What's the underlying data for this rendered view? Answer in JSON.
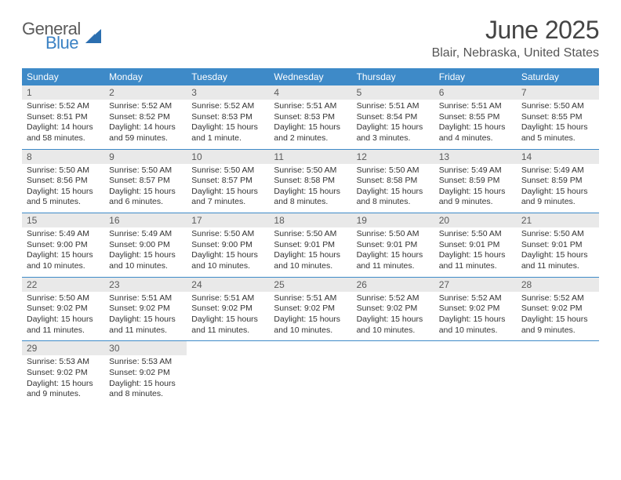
{
  "logo": {
    "text1": "General",
    "text2": "Blue",
    "shape_color": "#2b6fb0"
  },
  "month_title": "June 2025",
  "location": "Blair, Nebraska, United States",
  "colors": {
    "header_bar": "#3e8ac8",
    "header_text": "#ffffff",
    "daynum_bg": "#e9e9e9",
    "daynum_text": "#5a5a5a",
    "rule": "#3e8ac8",
    "body_text": "#333333"
  },
  "weekdays": [
    "Sunday",
    "Monday",
    "Tuesday",
    "Wednesday",
    "Thursday",
    "Friday",
    "Saturday"
  ],
  "weeks": [
    [
      {
        "num": "1",
        "sunrise": "5:52 AM",
        "sunset": "8:51 PM",
        "daylight": "14 hours and 58 minutes."
      },
      {
        "num": "2",
        "sunrise": "5:52 AM",
        "sunset": "8:52 PM",
        "daylight": "14 hours and 59 minutes."
      },
      {
        "num": "3",
        "sunrise": "5:52 AM",
        "sunset": "8:53 PM",
        "daylight": "15 hours and 1 minute."
      },
      {
        "num": "4",
        "sunrise": "5:51 AM",
        "sunset": "8:53 PM",
        "daylight": "15 hours and 2 minutes."
      },
      {
        "num": "5",
        "sunrise": "5:51 AM",
        "sunset": "8:54 PM",
        "daylight": "15 hours and 3 minutes."
      },
      {
        "num": "6",
        "sunrise": "5:51 AM",
        "sunset": "8:55 PM",
        "daylight": "15 hours and 4 minutes."
      },
      {
        "num": "7",
        "sunrise": "5:50 AM",
        "sunset": "8:55 PM",
        "daylight": "15 hours and 5 minutes."
      }
    ],
    [
      {
        "num": "8",
        "sunrise": "5:50 AM",
        "sunset": "8:56 PM",
        "daylight": "15 hours and 5 minutes."
      },
      {
        "num": "9",
        "sunrise": "5:50 AM",
        "sunset": "8:57 PM",
        "daylight": "15 hours and 6 minutes."
      },
      {
        "num": "10",
        "sunrise": "5:50 AM",
        "sunset": "8:57 PM",
        "daylight": "15 hours and 7 minutes."
      },
      {
        "num": "11",
        "sunrise": "5:50 AM",
        "sunset": "8:58 PM",
        "daylight": "15 hours and 8 minutes."
      },
      {
        "num": "12",
        "sunrise": "5:50 AM",
        "sunset": "8:58 PM",
        "daylight": "15 hours and 8 minutes."
      },
      {
        "num": "13",
        "sunrise": "5:49 AM",
        "sunset": "8:59 PM",
        "daylight": "15 hours and 9 minutes."
      },
      {
        "num": "14",
        "sunrise": "5:49 AM",
        "sunset": "8:59 PM",
        "daylight": "15 hours and 9 minutes."
      }
    ],
    [
      {
        "num": "15",
        "sunrise": "5:49 AM",
        "sunset": "9:00 PM",
        "daylight": "15 hours and 10 minutes."
      },
      {
        "num": "16",
        "sunrise": "5:49 AM",
        "sunset": "9:00 PM",
        "daylight": "15 hours and 10 minutes."
      },
      {
        "num": "17",
        "sunrise": "5:50 AM",
        "sunset": "9:00 PM",
        "daylight": "15 hours and 10 minutes."
      },
      {
        "num": "18",
        "sunrise": "5:50 AM",
        "sunset": "9:01 PM",
        "daylight": "15 hours and 10 minutes."
      },
      {
        "num": "19",
        "sunrise": "5:50 AM",
        "sunset": "9:01 PM",
        "daylight": "15 hours and 11 minutes."
      },
      {
        "num": "20",
        "sunrise": "5:50 AM",
        "sunset": "9:01 PM",
        "daylight": "15 hours and 11 minutes."
      },
      {
        "num": "21",
        "sunrise": "5:50 AM",
        "sunset": "9:01 PM",
        "daylight": "15 hours and 11 minutes."
      }
    ],
    [
      {
        "num": "22",
        "sunrise": "5:50 AM",
        "sunset": "9:02 PM",
        "daylight": "15 hours and 11 minutes."
      },
      {
        "num": "23",
        "sunrise": "5:51 AM",
        "sunset": "9:02 PM",
        "daylight": "15 hours and 11 minutes."
      },
      {
        "num": "24",
        "sunrise": "5:51 AM",
        "sunset": "9:02 PM",
        "daylight": "15 hours and 11 minutes."
      },
      {
        "num": "25",
        "sunrise": "5:51 AM",
        "sunset": "9:02 PM",
        "daylight": "15 hours and 10 minutes."
      },
      {
        "num": "26",
        "sunrise": "5:52 AM",
        "sunset": "9:02 PM",
        "daylight": "15 hours and 10 minutes."
      },
      {
        "num": "27",
        "sunrise": "5:52 AM",
        "sunset": "9:02 PM",
        "daylight": "15 hours and 10 minutes."
      },
      {
        "num": "28",
        "sunrise": "5:52 AM",
        "sunset": "9:02 PM",
        "daylight": "15 hours and 9 minutes."
      }
    ],
    [
      {
        "num": "29",
        "sunrise": "5:53 AM",
        "sunset": "9:02 PM",
        "daylight": "15 hours and 9 minutes."
      },
      {
        "num": "30",
        "sunrise": "5:53 AM",
        "sunset": "9:02 PM",
        "daylight": "15 hours and 8 minutes."
      },
      null,
      null,
      null,
      null,
      null
    ]
  ],
  "labels": {
    "sunrise": "Sunrise: ",
    "sunset": "Sunset: ",
    "daylight": "Daylight: "
  }
}
